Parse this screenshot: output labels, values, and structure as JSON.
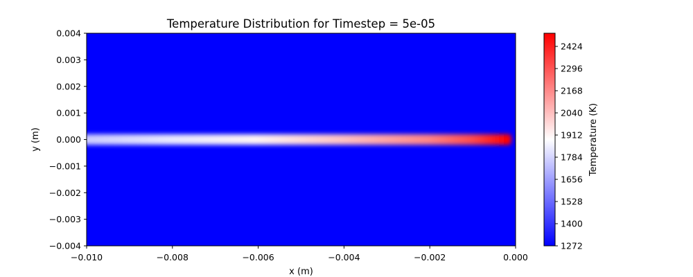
{
  "chart_data": {
    "type": "heatmap",
    "title": "Temperature Distribution for Timestep = 5e-05",
    "xlabel": "x (m)",
    "ylabel": "y (m)",
    "xlim": [
      -0.01,
      0.0
    ],
    "ylim": [
      -0.004,
      0.004
    ],
    "xticks": [
      "−0.010",
      "−0.008",
      "−0.006",
      "−0.004",
      "−0.002",
      "0.000"
    ],
    "xtick_values": [
      -0.01,
      -0.008,
      -0.006,
      -0.004,
      -0.002,
      0.0
    ],
    "yticks": [
      "−0.004",
      "−0.003",
      "−0.002",
      "−0.001",
      "0.000",
      "0.001",
      "0.002",
      "0.003",
      "0.004"
    ],
    "ytick_values": [
      -0.004,
      -0.003,
      -0.002,
      -0.001,
      0.0,
      0.001,
      0.002,
      0.003,
      0.004
    ],
    "colormap": "bwr",
    "colormap_colors": [
      "#0000ff",
      "#ffffff",
      "#ff0000"
    ],
    "colorbar": {
      "label": "Temperature (K)",
      "range": [
        1272,
        2500
      ],
      "ticks": [
        "1272",
        "1400",
        "1528",
        "1656",
        "1784",
        "1912",
        "2040",
        "2168",
        "2296",
        "2424"
      ],
      "tick_values": [
        1272,
        1400,
        1528,
        1656,
        1784,
        1912,
        2040,
        2168,
        2296,
        2424
      ]
    },
    "field": {
      "background_temperature": 1272,
      "streak": {
        "y_center": 0.0,
        "half_width": 0.0002,
        "x_start": -0.01,
        "x_end": -0.0001,
        "temperature_profile": [
          {
            "x": -0.01,
            "t": 1760
          },
          {
            "x": -0.008,
            "t": 1830
          },
          {
            "x": -0.006,
            "t": 1910
          },
          {
            "x": -0.004,
            "t": 2030
          },
          {
            "x": -0.002,
            "t": 2180
          },
          {
            "x": -0.001,
            "t": 2320
          },
          {
            "x": -0.0002,
            "t": 2500
          }
        ]
      }
    }
  }
}
